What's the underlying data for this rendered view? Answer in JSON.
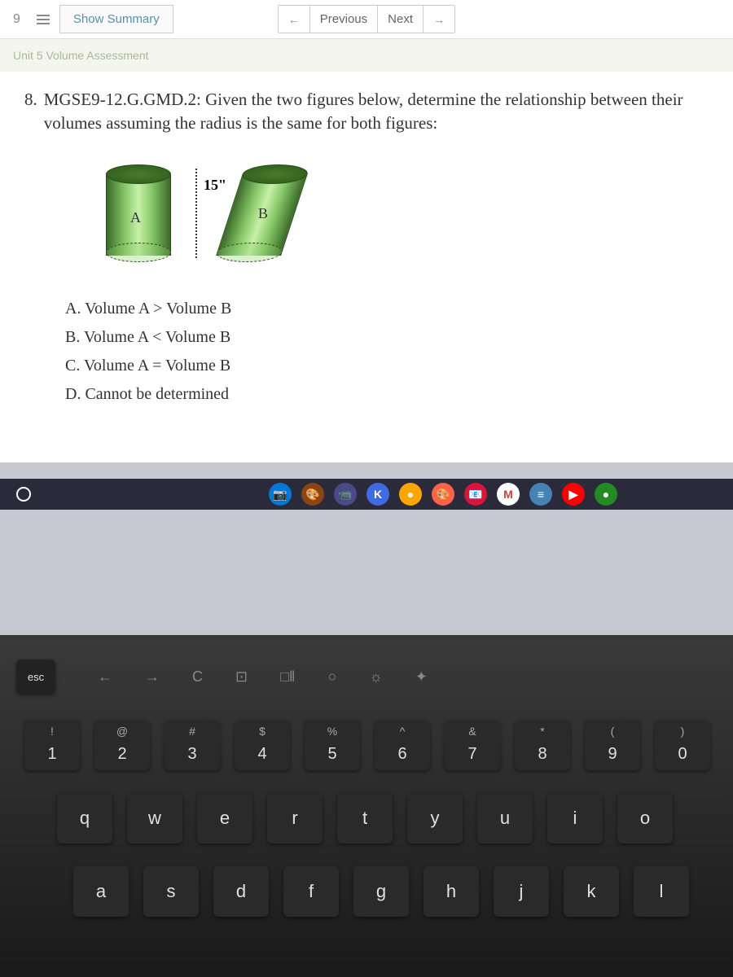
{
  "topbar": {
    "page_number": "9",
    "show_summary": "Show Summary",
    "previous": "Previous",
    "next": "Next"
  },
  "breadcrumb": "Unit 5 Volume Assessment",
  "question": {
    "number": "8.",
    "text": "MGSE9-12.G.GMD.2: Given the two figures below, determine the relationship between their volumes assuming the radius is the same for both figures:",
    "height_label": "15\"",
    "label_a": "A",
    "label_b": "B",
    "answers": {
      "a": "A.  Volume A > Volume B",
      "b": "B.  Volume A < Volume B",
      "c": "C.  Volume A = Volume B",
      "d": "D. Cannot be determined"
    }
  },
  "taskbar": {
    "icons": [
      {
        "bg": "#0078d4",
        "text": "📷"
      },
      {
        "bg": "#8b4513",
        "text": "🎨"
      },
      {
        "bg": "#4a4a8a",
        "text": "📹"
      },
      {
        "bg": "#4169e1",
        "text": "K"
      },
      {
        "bg": "#ffa500",
        "text": "●"
      },
      {
        "bg": "#ff6347",
        "text": "🎨"
      },
      {
        "bg": "#dc143c",
        "text": "📧"
      },
      {
        "bg": "#ffffff",
        "text": "M"
      },
      {
        "bg": "#4682b4",
        "text": "≡"
      },
      {
        "bg": "#ff0000",
        "text": "▶"
      },
      {
        "bg": "#228b22",
        "text": "●"
      }
    ]
  },
  "keyboard": {
    "esc": "esc",
    "fn_row": [
      "←",
      "→",
      "C",
      "⊡",
      "□‖",
      "○",
      "☼",
      "✦"
    ],
    "num_row": [
      {
        "u": "!",
        "l": "1"
      },
      {
        "u": "@",
        "l": "2"
      },
      {
        "u": "#",
        "l": "3"
      },
      {
        "u": "$",
        "l": "4"
      },
      {
        "u": "%",
        "l": "5"
      },
      {
        "u": "^",
        "l": "6"
      },
      {
        "u": "&",
        "l": "7"
      },
      {
        "u": "*",
        "l": "8"
      },
      {
        "u": "(",
        "l": "9"
      },
      {
        "u": ")",
        "l": "0"
      }
    ],
    "row_q": [
      "q",
      "w",
      "e",
      "r",
      "t",
      "y",
      "u",
      "i",
      "o"
    ],
    "row_a": [
      "a",
      "s",
      "d",
      "f",
      "g",
      "h",
      "j",
      "k",
      "l"
    ]
  }
}
